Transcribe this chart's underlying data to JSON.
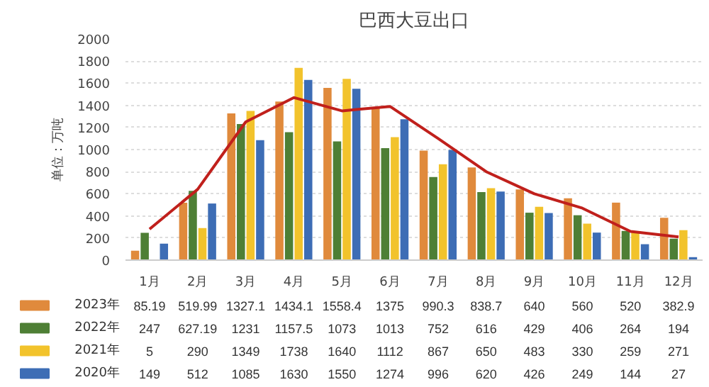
{
  "chart_data": {
    "type": "bar",
    "title": "巴西大豆出口",
    "ylabel": "单位：万吨",
    "categories": [
      "1月",
      "2月",
      "3月",
      "4月",
      "5月",
      "6月",
      "7月",
      "8月",
      "9月",
      "10月",
      "11月",
      "12月"
    ],
    "series": [
      {
        "name": "2023年",
        "color": "#e08a3c",
        "values": [
          85.19,
          519.99,
          1327.1,
          1434.1,
          1558.4,
          1375,
          990.3,
          838.7,
          640,
          560,
          520,
          382.9
        ],
        "value_labels": [
          "85.19",
          "519.99",
          "1327.1",
          "1434.1",
          "1558.4",
          "1375",
          "990.3",
          "838.7",
          "640",
          "560",
          "520",
          "382.9"
        ]
      },
      {
        "name": "2022年",
        "color": "#4e7f35",
        "values": [
          247,
          627.19,
          1231,
          1157.5,
          1073,
          1013,
          752,
          616,
          429,
          406,
          264,
          194
        ],
        "value_labels": [
          "247",
          "627.19",
          "1231",
          "1157.5",
          "1073",
          "1013",
          "752",
          "616",
          "429",
          "406",
          "264",
          "194"
        ]
      },
      {
        "name": "2021年",
        "color": "#f2c32c",
        "values": [
          5,
          290,
          1349,
          1738,
          1640,
          1112,
          867,
          650,
          483,
          330,
          259,
          271
        ],
        "value_labels": [
          "5",
          "290",
          "1349",
          "1738",
          "1640",
          "1112",
          "867",
          "650",
          "483",
          "330",
          "259",
          "271"
        ]
      },
      {
        "name": "2020年",
        "color": "#3d6db5",
        "values": [
          149,
          512,
          1085,
          1630,
          1550,
          1274,
          996,
          620,
          426,
          249,
          144,
          27
        ],
        "value_labels": [
          "149",
          "512",
          "1085",
          "1630",
          "1550",
          "1274",
          "996",
          "620",
          "426",
          "249",
          "144",
          "27"
        ]
      },
      {
        "type": "line",
        "color": "#c0201c",
        "values": [
          280,
          640,
          1250,
          1470,
          1350,
          1390,
          1100,
          800,
          600,
          470,
          260,
          210
        ]
      }
    ],
    "ylim": [
      0,
      2000
    ],
    "yticks": [
      0,
      200,
      400,
      600,
      800,
      1000,
      1200,
      1400,
      1600,
      1800,
      2000
    ],
    "grid": "y",
    "legend": "bottom"
  }
}
